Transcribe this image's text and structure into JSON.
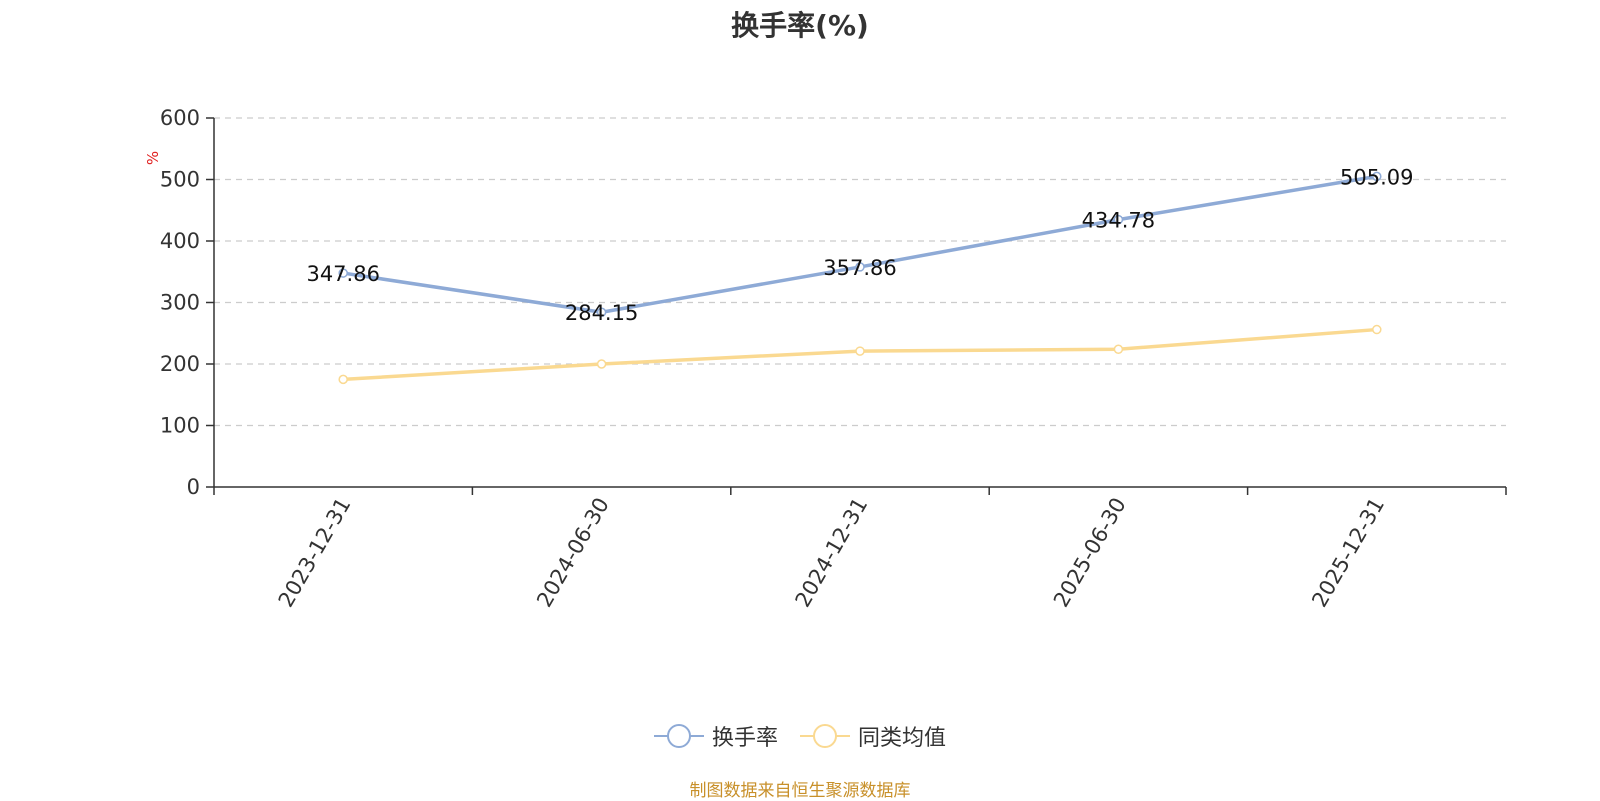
{
  "chart_data": {
    "type": "line",
    "title": "换手率(%)",
    "ylabel": "%",
    "xlabel": "",
    "categories": [
      "2023-12-31",
      "2024-06-30",
      "2024-12-31",
      "2025-06-30",
      "2025-12-31"
    ],
    "ylim": [
      0,
      600
    ],
    "yticks": [
      0,
      100,
      200,
      300,
      400,
      500,
      600
    ],
    "grid": true,
    "legend_position": "bottom-center",
    "series": [
      {
        "name": "换手率",
        "color": "#8eaad6",
        "values": [
          347.86,
          284.15,
          357.86,
          434.78,
          505.09
        ],
        "labels": [
          "347.86",
          "284.15",
          "357.86",
          "434.78",
          "505.09"
        ]
      },
      {
        "name": "同类均值",
        "color": "#fad991",
        "values": [
          175,
          200,
          221,
          224,
          256
        ]
      }
    ]
  },
  "source_note": "制图数据来自恒生聚源数据库"
}
